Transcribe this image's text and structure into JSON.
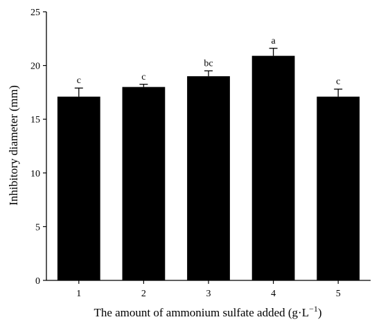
{
  "chart_data": {
    "type": "bar",
    "title": "",
    "xlabel": "The amount of ammonium sulfate added (g·L",
    "xlabel_sup": "−1",
    "xlabel_close": ")",
    "ylabel": "Inhibitory diameter (mm)",
    "categories": [
      "1",
      "2",
      "3",
      "4",
      "5"
    ],
    "values": [
      17.1,
      18.0,
      19.0,
      20.9,
      17.1
    ],
    "errors": [
      0.8,
      0.25,
      0.5,
      0.7,
      0.7
    ],
    "significance": [
      "c",
      "c",
      "bc",
      "a",
      "c"
    ],
    "ylim": [
      0,
      25
    ],
    "yticks": [
      "0",
      "5",
      "10",
      "15",
      "20",
      "25"
    ],
    "grid": false,
    "bar_color": "#000000"
  }
}
